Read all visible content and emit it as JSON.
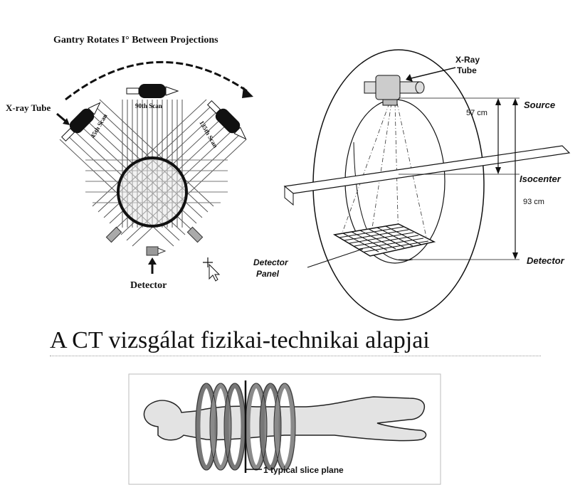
{
  "gantry": {
    "title": "Gantry Rotates I° Between Projections",
    "xray_tube_label": "X-ray Tube",
    "scan_45": "45th Scan",
    "scan_90": "90th Scan",
    "scan_135": "135th Scan",
    "detector_label": "Detector"
  },
  "ct_ring": {
    "xray_tube_line1": "X-Ray",
    "xray_tube_line2": "Tube",
    "source_label": "Source",
    "isocenter_label": "Isocenter",
    "detector_label": "Detector",
    "detector_panel_line1": "Detector",
    "detector_panel_line2": "Panel",
    "dist_57": "57 cm",
    "dist_93": "93 cm"
  },
  "main_title": "A CT vizsgálat fizikai-technikai alapjai",
  "helix": {
    "slice_label": "1 typical slice plane"
  }
}
